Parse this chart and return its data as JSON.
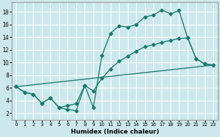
{
  "xlabel": "Humidex (Indice chaleur)",
  "bg_color": "#cce8ec",
  "grid_color": "#ffffff",
  "line_color": "#1a7a6e",
  "marker": "D",
  "marker_size": 2.5,
  "linewidth": 1.0,
  "xlim": [
    -0.5,
    23.5
  ],
  "ylim": [
    1,
    19.5
  ],
  "xticks": [
    0,
    1,
    2,
    3,
    4,
    5,
    6,
    7,
    8,
    9,
    10,
    11,
    12,
    13,
    14,
    15,
    16,
    17,
    18,
    19,
    20,
    21,
    22,
    23
  ],
  "yticks": [
    2,
    4,
    6,
    8,
    10,
    12,
    14,
    16,
    18
  ],
  "line1_x": [
    0,
    1,
    2,
    3,
    4,
    5,
    6,
    7,
    8,
    9,
    10,
    11,
    12,
    13,
    14,
    15,
    16,
    17,
    18,
    19,
    20,
    21,
    22,
    23
  ],
  "line1_y": [
    6.2,
    5.3,
    5.0,
    3.6,
    4.4,
    2.9,
    2.6,
    2.4,
    6.4,
    2.9,
    11.1,
    14.6,
    15.8,
    15.6,
    16.0,
    17.2,
    17.5,
    18.3,
    17.7,
    18.2,
    13.9,
    10.6,
    9.8,
    9.6
  ],
  "line2_x": [
    0,
    1,
    2,
    3,
    4,
    5,
    6,
    7,
    8,
    9,
    10,
    11,
    12,
    13,
    14,
    15,
    16,
    17,
    18,
    19,
    20,
    21,
    22,
    23
  ],
  "line2_y": [
    6.2,
    5.3,
    5.0,
    3.6,
    4.4,
    2.9,
    3.2,
    3.5,
    6.4,
    5.5,
    7.5,
    9.0,
    10.2,
    11.0,
    11.8,
    12.5,
    12.8,
    13.2,
    13.5,
    13.8,
    13.9,
    10.6,
    9.8,
    9.6
  ],
  "line3_x": [
    0,
    23
  ],
  "line3_y": [
    6.2,
    9.6
  ]
}
